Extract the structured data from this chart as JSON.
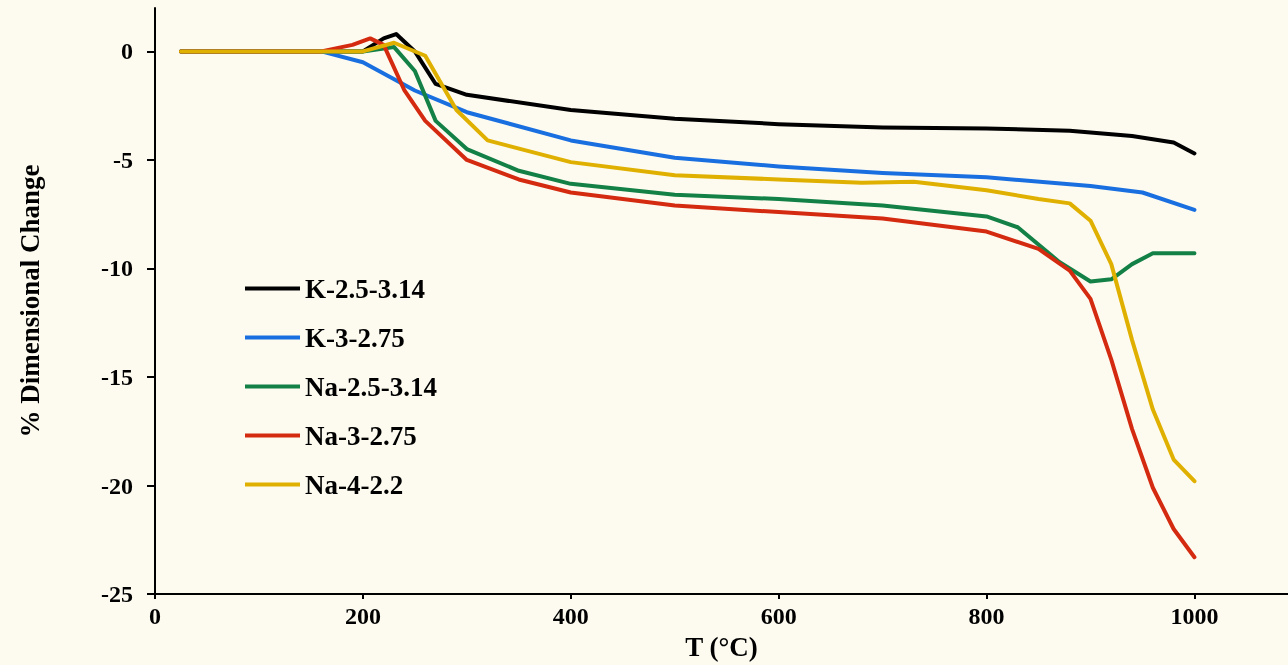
{
  "chart_data": {
    "type": "line",
    "xlabel": "T (°C)",
    "ylabel": "% Dimensional Change",
    "xlim": [
      0,
      1090
    ],
    "xticks": [
      0,
      200,
      400,
      600,
      800,
      1000
    ],
    "ylim": [
      -25,
      2
    ],
    "yticks": [
      -25,
      -20,
      -15,
      -10,
      -5,
      0
    ],
    "grid": false,
    "legend": "left",
    "marker": "none",
    "line_style": "solid",
    "series": [
      {
        "name": "K-2.5-3.14",
        "color": "#000000",
        "x": [
          25,
          100,
          200,
          220,
          232,
          250,
          270,
          300,
          400,
          500,
          600,
          700,
          800,
          880,
          940,
          980,
          1000
        ],
        "values": [
          0,
          0,
          0,
          0.6,
          0.8,
          0,
          -1.5,
          -2.0,
          -2.7,
          -3.1,
          -3.35,
          -3.5,
          -3.55,
          -3.65,
          -3.9,
          -4.2,
          -4.7
        ]
      },
      {
        "name": "K-3-2.75",
        "color": "#1a6fe0",
        "x": [
          25,
          100,
          160,
          200,
          250,
          300,
          400,
          500,
          600,
          700,
          800,
          900,
          950,
          1000
        ],
        "values": [
          0,
          0,
          0,
          -0.5,
          -1.8,
          -2.8,
          -4.1,
          -4.9,
          -5.3,
          -5.6,
          -5.8,
          -6.2,
          -6.5,
          -7.3
        ]
      },
      {
        "name": "Na-2.5-3.14",
        "color": "#138046",
        "x": [
          25,
          100,
          200,
          230,
          250,
          270,
          300,
          350,
          400,
          500,
          600,
          700,
          800,
          830,
          870,
          900,
          920,
          940,
          960,
          1000
        ],
        "values": [
          0,
          0,
          0,
          0.2,
          -0.9,
          -3.2,
          -4.5,
          -5.5,
          -6.1,
          -6.6,
          -6.8,
          -7.1,
          -7.6,
          -8.1,
          -9.7,
          -10.6,
          -10.5,
          -9.8,
          -9.3,
          -9.3
        ]
      },
      {
        "name": "Na-3-2.75",
        "color": "#d42a10",
        "x": [
          25,
          100,
          160,
          190,
          207,
          220,
          240,
          260,
          300,
          350,
          400,
          500,
          600,
          700,
          800,
          850,
          880,
          900,
          920,
          940,
          960,
          980,
          1000
        ],
        "values": [
          0,
          0,
          0,
          0.3,
          0.6,
          0.3,
          -1.8,
          -3.2,
          -5.0,
          -5.9,
          -6.5,
          -7.1,
          -7.4,
          -7.7,
          -8.3,
          -9.1,
          -10.1,
          -11.4,
          -14.2,
          -17.4,
          -20.1,
          -22.0,
          -23.3
        ]
      },
      {
        "name": "Na-4-2.2",
        "color": "#e0b000",
        "x": [
          25,
          100,
          200,
          230,
          260,
          290,
          320,
          400,
          500,
          600,
          680,
          730,
          800,
          850,
          880,
          900,
          920,
          940,
          960,
          980,
          1000
        ],
        "values": [
          0,
          0,
          0,
          0.4,
          -0.2,
          -2.7,
          -4.1,
          -5.1,
          -5.7,
          -5.9,
          -6.05,
          -6.0,
          -6.4,
          -6.8,
          -7.0,
          -7.8,
          -9.8,
          -13.3,
          -16.5,
          -18.8,
          -19.8
        ]
      }
    ]
  }
}
